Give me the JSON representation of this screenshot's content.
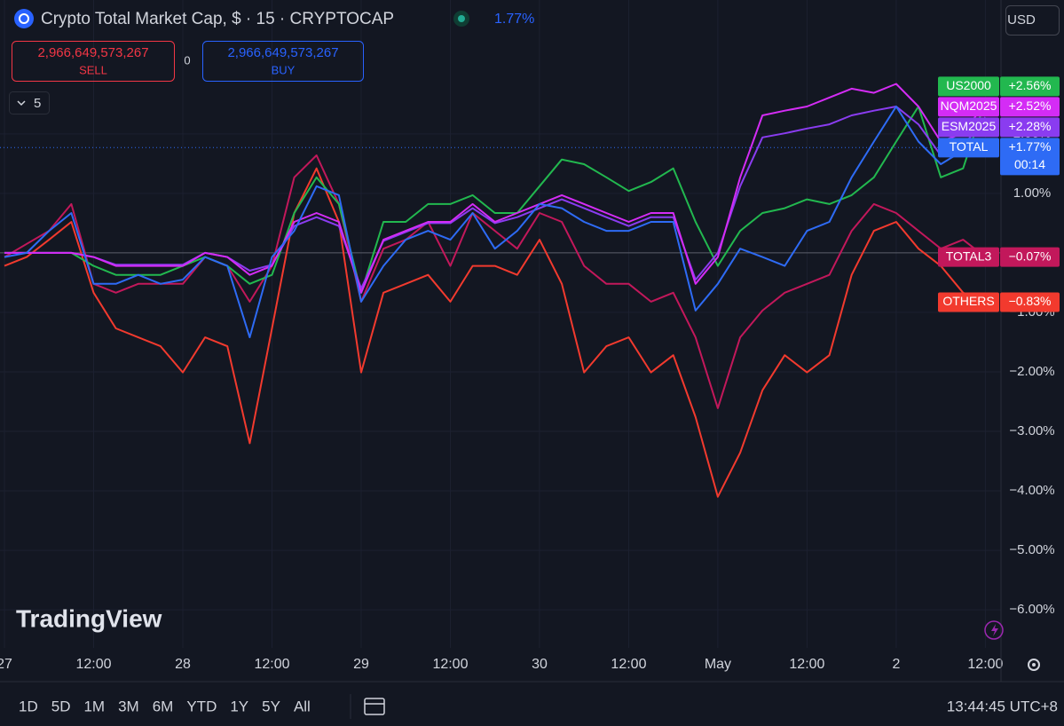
{
  "header": {
    "title": "Crypto Total Market Cap, $ · 15 · CRYPTOCAP",
    "change": "1.77%",
    "sell_price": "2,966,649,573,267",
    "sell_label": "SELL",
    "spread": "0",
    "buy_price": "2,966,649,573,267",
    "buy_label": "BUY",
    "interval_count": "5",
    "currency": "USD"
  },
  "watermark": "TradingView",
  "toolbar": {
    "ranges": [
      "1D",
      "5D",
      "1M",
      "3M",
      "6M",
      "YTD",
      "1Y",
      "5Y",
      "All"
    ],
    "clock": "13:44:45 UTC+8"
  },
  "chart_data": {
    "type": "line",
    "x": [
      0,
      3,
      6,
      9,
      12,
      15,
      18,
      21,
      24,
      27,
      30,
      33,
      36,
      39,
      42,
      45,
      48,
      51,
      54,
      57,
      60,
      63,
      66,
      69,
      72,
      75,
      78,
      81,
      84,
      87,
      90,
      93,
      96,
      99,
      102,
      105,
      108,
      111,
      114,
      117,
      120,
      123,
      126,
      129,
      132
    ],
    "xlim": [
      -0.6,
      134.1
    ],
    "xticks": [
      {
        "value": 0,
        "label": "27"
      },
      {
        "value": 12,
        "label": "12:00"
      },
      {
        "value": 24,
        "label": "28"
      },
      {
        "value": 36,
        "label": "12:00"
      },
      {
        "value": 48,
        "label": "29"
      },
      {
        "value": 60,
        "label": "12:00"
      },
      {
        "value": 72,
        "label": "30"
      },
      {
        "value": 84,
        "label": "12:00"
      },
      {
        "value": 96,
        "label": "May"
      },
      {
        "value": 108,
        "label": "12:00"
      },
      {
        "value": 120,
        "label": "2"
      },
      {
        "value": 132,
        "label": "12:00"
      }
    ],
    "ylim": [
      -6.64,
      4.25
    ],
    "yticks": [
      {
        "value": -6,
        "label": "−6.00%"
      },
      {
        "value": -5,
        "label": "−5.00%"
      },
      {
        "value": -4,
        "label": "−4.00%"
      },
      {
        "value": -3,
        "label": "−3.00%"
      },
      {
        "value": -2,
        "label": "−2.00%"
      },
      {
        "value": -1,
        "label": "−1.00%"
      },
      {
        "value": 1,
        "label": "1.00%"
      },
      {
        "value": 2,
        "label": "2.00%"
      }
    ],
    "grid": true,
    "series": [
      {
        "name": "OTHERS",
        "color": "#f23a2e",
        "last_label": "−0.83%",
        "values": [
          -0.22,
          -0.07,
          0.22,
          0.52,
          -0.67,
          -1.27,
          -1.42,
          -1.57,
          -2.01,
          -1.42,
          -1.57,
          -3.2,
          -1.27,
          0.67,
          1.42,
          0.52,
          -2.01,
          -0.67,
          -0.52,
          -0.37,
          -0.82,
          -0.22,
          -0.22,
          -0.37,
          0.22,
          -0.52,
          -2.01,
          -1.57,
          -1.42,
          -2.01,
          -1.72,
          -2.76,
          -4.1,
          -3.36,
          -2.31,
          -1.72,
          -2.01,
          -1.72,
          -0.37,
          0.37,
          0.52,
          0.07,
          -0.22,
          -0.67,
          -0.83
        ]
      },
      {
        "name": "TOTAL3",
        "color": "#c2185b",
        "last_label": "−0.07%",
        "values": [
          -0.07,
          0.15,
          0.37,
          0.82,
          -0.52,
          -0.67,
          -0.52,
          -0.52,
          -0.52,
          -0.07,
          -0.22,
          -0.82,
          -0.22,
          1.27,
          1.64,
          0.82,
          -0.82,
          0.07,
          0.22,
          0.52,
          -0.22,
          0.67,
          0.37,
          0.07,
          0.67,
          0.52,
          -0.22,
          -0.52,
          -0.52,
          -0.82,
          -0.67,
          -1.42,
          -2.61,
          -1.42,
          -0.97,
          -0.67,
          -0.52,
          -0.37,
          0.37,
          0.82,
          0.67,
          0.37,
          0.07,
          0.22,
          -0.07
        ]
      },
      {
        "name": "US2000",
        "color": "#22b84f",
        "last_label": "+2.56%",
        "values": [
          0,
          0,
          0,
          0,
          -0.22,
          -0.37,
          -0.37,
          -0.37,
          -0.22,
          -0.07,
          -0.22,
          -0.52,
          -0.37,
          0.67,
          1.27,
          0.82,
          -0.67,
          0.52,
          0.52,
          0.82,
          0.82,
          0.97,
          0.67,
          0.67,
          1.12,
          1.57,
          1.49,
          1.27,
          1.04,
          1.19,
          1.42,
          0.52,
          -0.22,
          0.37,
          0.67,
          0.75,
          0.9,
          0.82,
          0.97,
          1.27,
          1.87,
          2.46,
          1.27,
          1.42,
          2.56
        ]
      },
      {
        "name": "ESM2025",
        "color": "#8a3cf0",
        "last_label": "+2.28%",
        "values": [
          0,
          0,
          0,
          0,
          -0.07,
          -0.2,
          -0.2,
          -0.2,
          -0.2,
          0,
          -0.07,
          -0.3,
          -0.2,
          0.45,
          0.6,
          0.45,
          -0.6,
          0.2,
          0.35,
          0.5,
          0.5,
          0.75,
          0.5,
          0.6,
          0.75,
          0.9,
          0.75,
          0.6,
          0.45,
          0.6,
          0.6,
          -0.45,
          0,
          1.12,
          1.94,
          2.01,
          2.09,
          2.16,
          2.31,
          2.39,
          2.46,
          2.16,
          1.64,
          1.79,
          2.28
        ]
      },
      {
        "name": "NQM2025",
        "color": "#d42cf5",
        "last_label": "+2.52%",
        "values": [
          0,
          0,
          0,
          0,
          -0.07,
          -0.22,
          -0.22,
          -0.22,
          -0.22,
          0,
          -0.07,
          -0.37,
          -0.22,
          0.52,
          0.67,
          0.52,
          -0.67,
          0.22,
          0.37,
          0.52,
          0.52,
          0.82,
          0.52,
          0.67,
          0.82,
          0.97,
          0.82,
          0.67,
          0.52,
          0.67,
          0.67,
          -0.52,
          -0.07,
          1.27,
          2.31,
          2.39,
          2.46,
          2.61,
          2.76,
          2.69,
          2.84,
          2.46,
          1.87,
          2.01,
          2.52
        ]
      },
      {
        "name": "TOTAL",
        "color": "#2e6bf5",
        "last_label": "+1.77%",
        "countdown": "00:14",
        "values": [
          -0.07,
          0,
          0.37,
          0.67,
          -0.52,
          -0.52,
          -0.37,
          -0.52,
          -0.45,
          -0.07,
          -0.22,
          -1.42,
          -0.07,
          0.37,
          1.12,
          0.97,
          -0.82,
          -0.22,
          0.22,
          0.37,
          0.22,
          0.67,
          0.07,
          0.37,
          0.82,
          0.75,
          0.52,
          0.37,
          0.37,
          0.52,
          0.52,
          -0.97,
          -0.52,
          0.07,
          -0.07,
          -0.22,
          0.37,
          0.52,
          1.27,
          1.87,
          2.46,
          1.87,
          1.49,
          1.72,
          1.77
        ]
      }
    ]
  }
}
